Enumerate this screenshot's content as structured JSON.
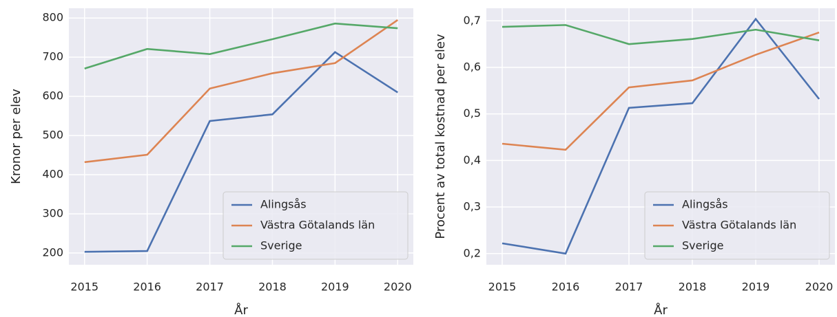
{
  "chart_data": [
    {
      "type": "line",
      "ylabel": "Kronor per elev",
      "xlabel": "År",
      "x": [
        2015,
        2016,
        2017,
        2018,
        2019,
        2020
      ],
      "xlim": [
        2014.75,
        2020.25
      ],
      "xticks": [
        2015,
        2016,
        2017,
        2018,
        2019,
        2020
      ],
      "ylim": [
        170,
        825
      ],
      "yticks": [
        200,
        300,
        400,
        500,
        600,
        700,
        800
      ],
      "grid": true,
      "legend": "lower right",
      "series": [
        {
          "name": "Alingsås",
          "color": "#4c72b0",
          "values": [
            203,
            205,
            537,
            554,
            713,
            610
          ]
        },
        {
          "name": "Västra Götalands län",
          "color": "#dd8452",
          "values": [
            432,
            451,
            620,
            659,
            685,
            795
          ]
        },
        {
          "name": "Sverige",
          "color": "#55a868",
          "values": [
            671,
            721,
            708,
            746,
            786,
            774
          ]
        }
      ]
    },
    {
      "type": "line",
      "ylabel": "Procent av total kostnad per elev",
      "xlabel": "År",
      "x": [
        2015,
        2016,
        2017,
        2018,
        2019,
        2020
      ],
      "xlim": [
        2014.75,
        2020.25
      ],
      "xticks": [
        2015,
        2016,
        2017,
        2018,
        2019,
        2020
      ],
      "ylim": [
        0.176,
        0.727
      ],
      "yticks": [
        {
          "value": 0.2,
          "label": "0,2"
        },
        {
          "value": 0.3,
          "label": "0,3"
        },
        {
          "value": 0.4,
          "label": "0,4"
        },
        {
          "value": 0.5,
          "label": "0,5"
        },
        {
          "value": 0.6,
          "label": "0,6"
        },
        {
          "value": 0.7,
          "label": "0,7"
        }
      ],
      "grid": true,
      "legend": "lower right",
      "series": [
        {
          "name": "Alingsås",
          "color": "#4c72b0",
          "values": [
            0.222,
            0.2,
            0.513,
            0.523,
            0.704,
            0.532
          ]
        },
        {
          "name": "Västra Götalands län",
          "color": "#dd8452",
          "values": [
            0.436,
            0.423,
            0.557,
            0.572,
            0.627,
            0.675
          ]
        },
        {
          "name": "Sverige",
          "color": "#55a868",
          "values": [
            0.687,
            0.691,
            0.65,
            0.661,
            0.681,
            0.658
          ]
        }
      ]
    }
  ]
}
